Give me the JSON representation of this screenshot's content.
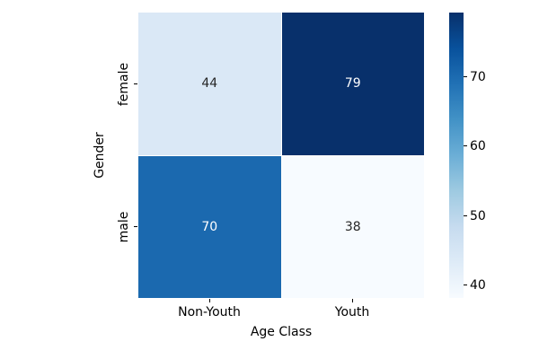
{
  "chart_data": {
    "type": "heatmap",
    "title": "",
    "xlabel": "Age Class",
    "ylabel": "Gender",
    "x_categories": [
      "Non-Youth",
      "Youth"
    ],
    "y_categories": [
      "female",
      "male"
    ],
    "values": [
      [
        44,
        79
      ],
      [
        70,
        38
      ]
    ],
    "colormap": "Blues",
    "vmin": 38,
    "vmax": 79,
    "colorbar_ticks": [
      40,
      50,
      60,
      70
    ],
    "colorbar_position": "right",
    "grid": false,
    "annotated": true
  },
  "axes": {
    "xlabel": "Age Class",
    "ylabel": "Gender",
    "xticks": [
      "Non-Youth",
      "Youth"
    ],
    "yticks": [
      "female",
      "male"
    ]
  },
  "heatmap": {
    "cells": [
      {
        "row": "female",
        "col": "Non-Youth",
        "value": "44",
        "bg": "#dae8f6",
        "fg": "#262626"
      },
      {
        "row": "female",
        "col": "Youth",
        "value": "79",
        "bg": "#08306b",
        "fg": "#ffffff"
      },
      {
        "row": "male",
        "col": "Non-Youth",
        "value": "70",
        "bg": "#1b69af",
        "fg": "#ffffff"
      },
      {
        "row": "male",
        "col": "Youth",
        "value": "38",
        "bg": "#f7fbff",
        "fg": "#262626"
      }
    ]
  },
  "colorbar": {
    "tick_labels": [
      "70",
      "60",
      "50",
      "40"
    ],
    "gradient_bottom_to_top": [
      "#f7fbff",
      "#deebf7",
      "#c6dbef",
      "#9ecae1",
      "#6baed6",
      "#4292c6",
      "#2171b5",
      "#08519c",
      "#08306b"
    ]
  },
  "colors": {
    "background": "#ffffff",
    "dark_annotation_text": "#262626",
    "light_annotation_text": "#ffffff",
    "axis_text": "#000000"
  }
}
